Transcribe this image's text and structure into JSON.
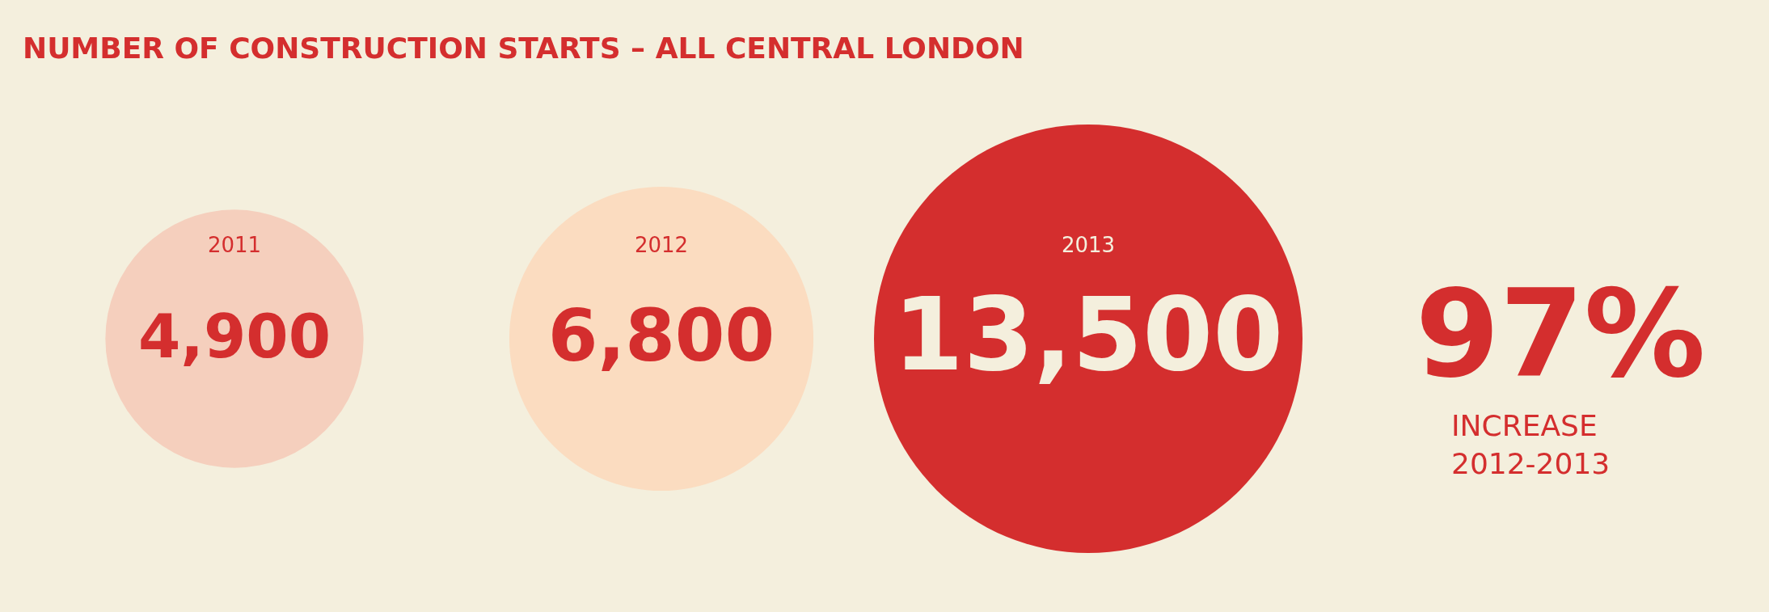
{
  "chart_data": {
    "type": "other",
    "title": "NUMBER OF CONSTRUCTION STARTS – ALL CENTRAL LONDON",
    "categories": [
      "2011",
      "2012",
      "2013"
    ],
    "values": [
      4900,
      6800,
      13500
    ],
    "value_labels": [
      "4,900",
      "6,800",
      "13,500"
    ],
    "colors": [
      "#f5cfbd",
      "#fbdcc0",
      "#d42e2e"
    ],
    "annotations": [
      "97%",
      "INCREASE",
      "2012-2013"
    ]
  }
}
